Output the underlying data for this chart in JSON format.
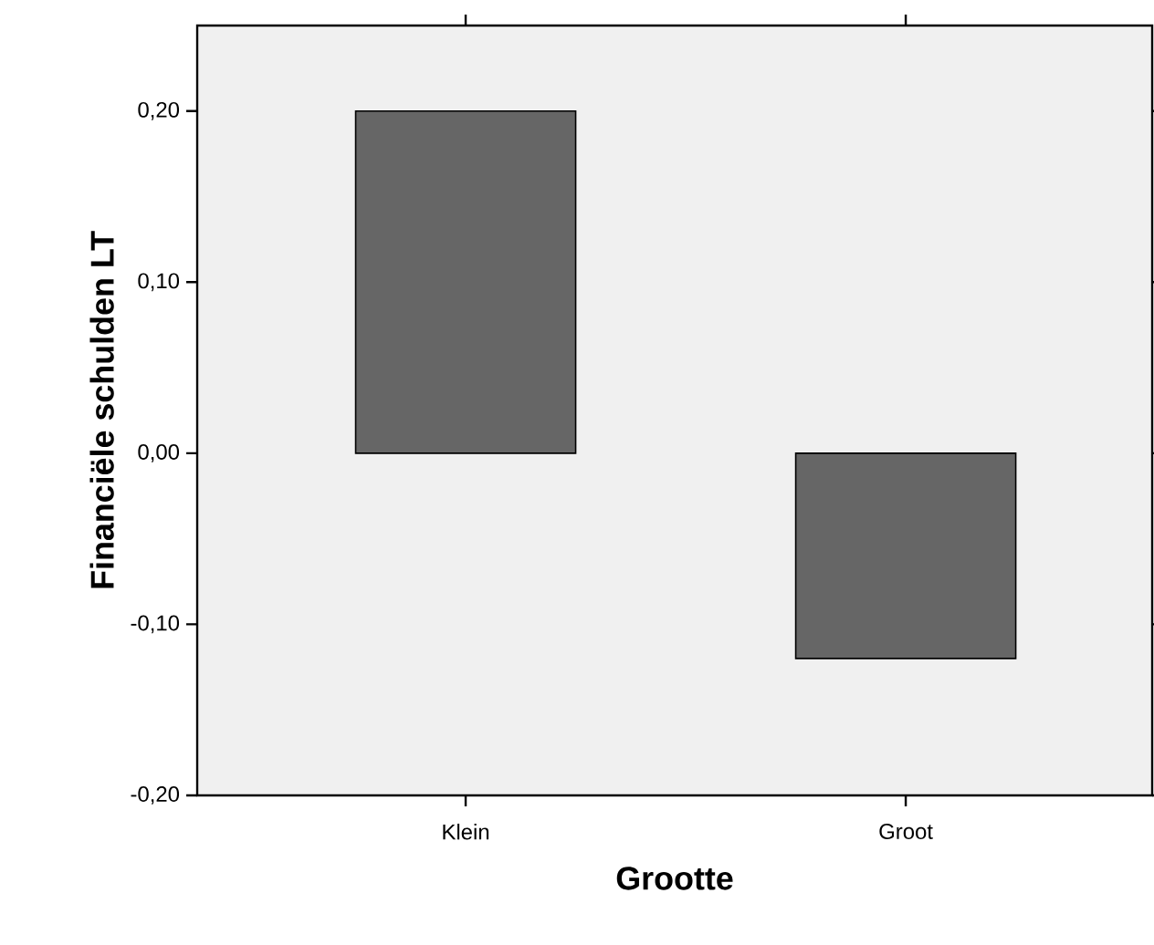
{
  "chart_data": {
    "type": "bar",
    "xlabel": "Grootte",
    "ylabel": "Financiële schulden LT",
    "categories": [
      "Klein",
      "Groot"
    ],
    "values": [
      0.2,
      -0.12
    ],
    "color": "#666666",
    "ylim": [
      -0.2,
      0.25
    ],
    "yticks": [
      {
        "value": -0.2,
        "label": "-0,20"
      },
      {
        "value": -0.1,
        "label": "-0,10"
      },
      {
        "value": 0,
        "label": "0,00"
      },
      {
        "value": 0.1,
        "label": "0,10"
      },
      {
        "value": 0.2,
        "label": "0,20"
      }
    ]
  }
}
